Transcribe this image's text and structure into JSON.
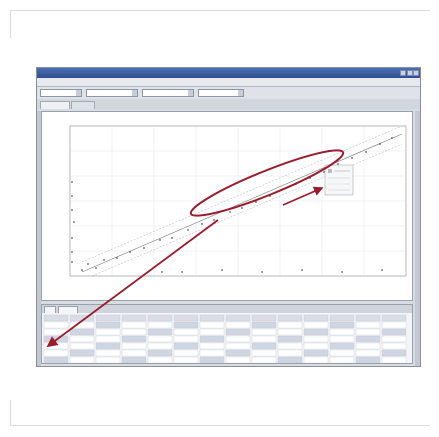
{
  "window": {
    "title": ""
  },
  "menu": {
    "items": [
      "",
      "",
      "",
      "",
      "",
      ""
    ]
  },
  "plot": {
    "title": "",
    "xlabel": "",
    "ylabel": "",
    "highlight_color": "#9b1b2a",
    "series_color": "#555555"
  },
  "bottom": {
    "tabs": [
      "",
      ""
    ]
  },
  "colors": {
    "titlebar": "#2d4f8f",
    "annotation": "#9b1b2a"
  }
}
